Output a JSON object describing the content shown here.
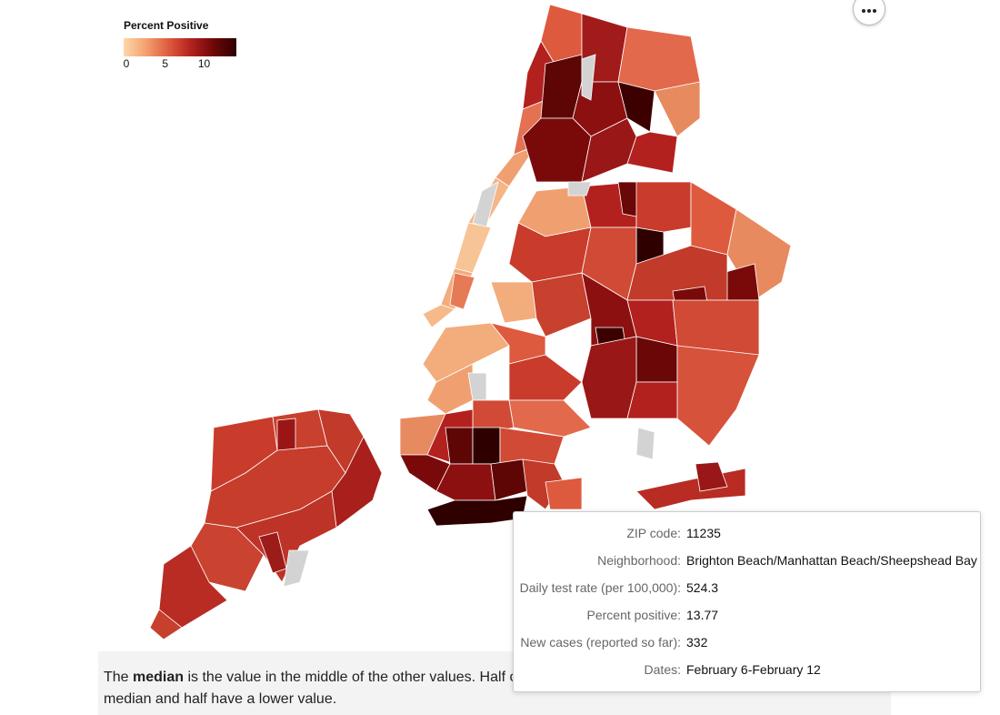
{
  "legend": {
    "title": "Percent Positive",
    "ticks": [
      0,
      5,
      10
    ],
    "range": [
      0,
      14.5
    ]
  },
  "tooltip": {
    "rows": [
      {
        "label": "ZIP code:",
        "value": "11235"
      },
      {
        "label": "Neighborhood:",
        "value": "Brighton Beach/Manhattan Beach/Sheepshead Bay"
      },
      {
        "label": "Daily test rate (per 100,000):",
        "value": 524.3
      },
      {
        "label": "Percent positive:",
        "value": 13.77
      },
      {
        "label": "New cases (reported so far):",
        "value": 332
      },
      {
        "label": "Dates:",
        "value": "February 6-February 12"
      }
    ]
  },
  "note": {
    "parts": [
      "The ",
      "median",
      " is the value in the middle of the other values. Half of the neighborhoods have a higher value than the median and half have a lower value."
    ]
  }
}
